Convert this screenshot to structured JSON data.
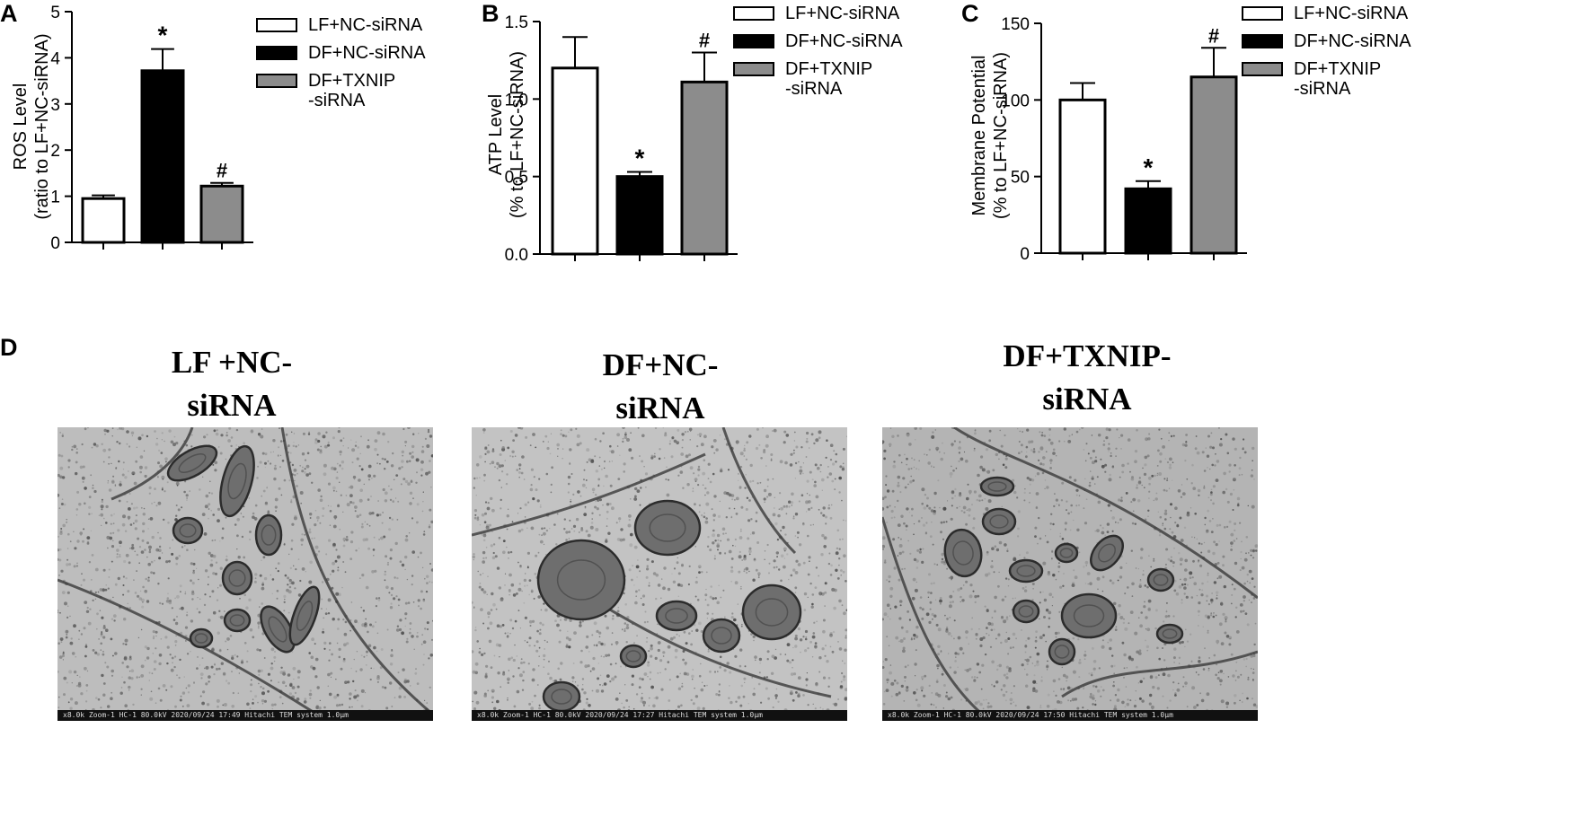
{
  "chart_data": [
    {
      "type": "bar",
      "panel": "A",
      "ylabel_lines": [
        "ROS Level",
        "(ratio to LF+NC-siRNA)"
      ],
      "ylim": [
        0,
        5
      ],
      "yticks": [
        0,
        1,
        2,
        3,
        4,
        5
      ],
      "ytick_labels": [
        "0",
        "1",
        "2",
        "3",
        "4",
        "5"
      ],
      "series": [
        {
          "name": "LF+NC-siRNA",
          "value": 0.95,
          "error": 0.07,
          "fill": "#ffffff",
          "mark": ""
        },
        {
          "name": "DF+NC-siRNA",
          "value": 3.72,
          "error": 0.47,
          "fill": "#000000",
          "mark": "*"
        },
        {
          "name": "DF+TXNIP\n-siRNA",
          "value": 1.22,
          "error": 0.07,
          "fill": "#8c8c8c",
          "mark": "#"
        }
      ]
    },
    {
      "type": "bar",
      "panel": "B",
      "ylabel_lines": [
        "ATP Level",
        "(% to LF+NC-siRNA)"
      ],
      "ylim": [
        0,
        1.5
      ],
      "yticks": [
        0,
        0.5,
        1.0,
        1.5
      ],
      "ytick_labels": [
        "0.0",
        "0.5",
        "1.0",
        "1.5"
      ],
      "series": [
        {
          "name": "LF+NC-siRNA",
          "value": 1.2,
          "error": 0.2,
          "fill": "#ffffff",
          "mark": ""
        },
        {
          "name": "DF+NC-siRNA",
          "value": 0.5,
          "error": 0.03,
          "fill": "#000000",
          "mark": "*"
        },
        {
          "name": "DF+TXNIP\n-siRNA",
          "value": 1.11,
          "error": 0.19,
          "fill": "#8c8c8c",
          "mark": "#"
        }
      ]
    },
    {
      "type": "bar",
      "panel": "C",
      "ylabel_lines": [
        "Membrane Potential",
        "(% to LF+NC-siRNA)"
      ],
      "ylim": [
        0,
        150
      ],
      "yticks": [
        0,
        50,
        100,
        150
      ],
      "ytick_labels": [
        "0",
        "50",
        "100",
        "150"
      ],
      "series": [
        {
          "name": "LF+NC-siRNA",
          "value": 100,
          "error": 11,
          "fill": "#ffffff",
          "mark": ""
        },
        {
          "name": "DF+NC-siRNA",
          "value": 42,
          "error": 5,
          "fill": "#000000",
          "mark": "*"
        },
        {
          "name": "DF+TXNIP\n-siRNA",
          "value": 115,
          "error": 19,
          "fill": "#8c8c8c",
          "mark": "#"
        }
      ]
    }
  ],
  "panel_d": {
    "letter": "D",
    "images": [
      {
        "title": "LF +NC-\nsiRNA",
        "footer": "x8.0k Zoom-1 HC-1 80.0kV 2020/09/24 17:49   Hitachi TEM system                                                    1.0µm"
      },
      {
        "title": "DF+NC-\nsiRNA",
        "footer": "x8.0k Zoom-1 HC-1 80.0kV 2020/09/24 17:27   Hitachi TEM system                                                    1.0µm"
      },
      {
        "title": "DF+TXNIP-\nsiRNA",
        "footer": "x8.0k Zoom-1 HC-1 80.0kV 2020/09/24 17:50   Hitachi TEM system                                                    1.0µm"
      }
    ]
  }
}
